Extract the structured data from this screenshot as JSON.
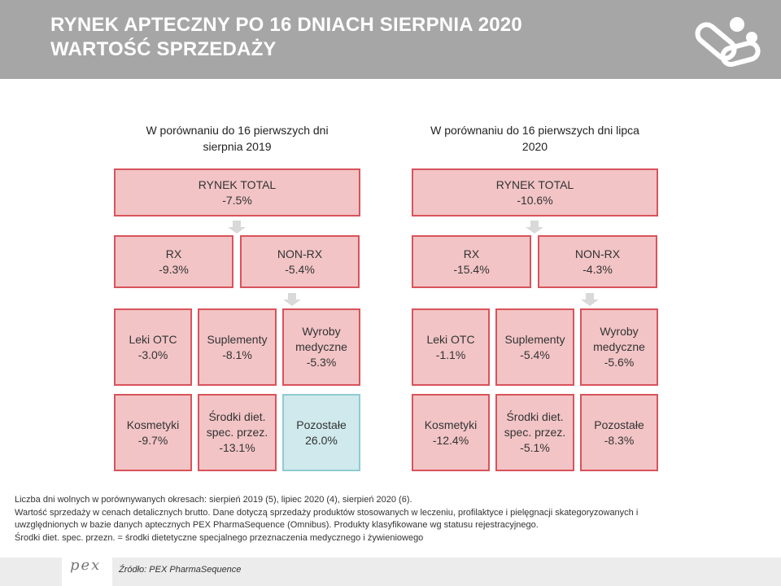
{
  "header": {
    "title_line1": "RYNEK APTECZNY PO 16 DNIACH SIERPNIA 2020",
    "title_line2": "WARTOŚĆ SPRZEDAŻY"
  },
  "colors": {
    "header_bg": "#a6a6a6",
    "box_fill": "#f2c4c6",
    "box_border": "#d9535b",
    "highlight_fill": "#cfe9ec",
    "highlight_border": "#8fcbd2",
    "arrow": "#d9d9d9"
  },
  "panels": [
    {
      "title_line1": "W porównaniu do 16 pierwszych dni",
      "title_line2": "sierpnia 2019",
      "total": {
        "label": "RYNEK TOTAL",
        "value": "-7.5%"
      },
      "rx": {
        "label": "RX",
        "value": "-9.3%"
      },
      "nonrx": {
        "label": "NON-RX",
        "value": "-5.4%"
      },
      "leki_otc": {
        "label": "Leki OTC",
        "value": "-3.0%"
      },
      "suplementy": {
        "label": "Suplementy",
        "value": "-8.1%"
      },
      "wyroby": {
        "label_line1": "Wyroby",
        "label_line2": "medyczne",
        "value": "-5.3%"
      },
      "kosmetyki": {
        "label": "Kosmetyki",
        "value": "-9.7%"
      },
      "srodki": {
        "label_line1": "Środki diet.",
        "label_line2": "spec. przez.",
        "value": "-13.1%"
      },
      "pozostale": {
        "label": "Pozostałe",
        "value": "26.0%"
      }
    },
    {
      "title_line1": "W porównaniu do 16 pierwszych dni lipca",
      "title_line2": "2020",
      "total": {
        "label": "RYNEK TOTAL",
        "value": "-10.6%"
      },
      "rx": {
        "label": "RX",
        "value": "-15.4%"
      },
      "nonrx": {
        "label": "NON-RX",
        "value": "-4.3%"
      },
      "leki_otc": {
        "label": "Leki OTC",
        "value": "-1.1%"
      },
      "suplementy": {
        "label": "Suplementy",
        "value": "-5.4%"
      },
      "wyroby": {
        "label_line1": "Wyroby",
        "label_line2": "medyczne",
        "value": "-5.6%"
      },
      "kosmetyki": {
        "label": "Kosmetyki",
        "value": "-12.4%"
      },
      "srodki": {
        "label_line1": "Środki diet.",
        "label_line2": "spec. przez.",
        "value": "-5.1%"
      },
      "pozostale": {
        "label": "Pozostałe",
        "value": "-8.3%"
      }
    }
  ],
  "notes": [
    "Liczba dni wolnych w porównywanych okresach: sierpień 2019 (5), lipiec 2020 (4), sierpień 2020 (6).",
    "Wartość sprzedaży w cenach detalicznych brutto. Dane dotyczą sprzedaży produktów stosowanych w leczeniu, profilaktyce i pielęgnacji skategoryzowanych i",
    "uwzględnionych w bazie danych aptecznych PEX PharmaSequence (Omnibus). Produkty klasyfikowane wg statusu rejestracyjnego.",
    "Środki diet. spec. przezn. = środki dietetyczne specjalnego przeznaczenia medycznego i żywieniowego"
  ],
  "footer": {
    "logo_text": "pex",
    "source": "Źródło: PEX PharmaSequence"
  }
}
